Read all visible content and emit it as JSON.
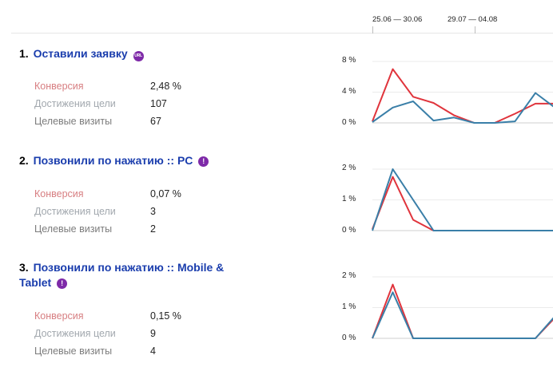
{
  "timeline": {
    "date_ranges": [
      "25.06 — 30.06",
      "29.07 — 04.08"
    ]
  },
  "colors": {
    "series_a": "#e0343c",
    "series_b": "#3a7fa8",
    "link": "#1a3dad",
    "badge": "#7e2aa8"
  },
  "goals": [
    {
      "number": "1.",
      "name": "Оставили заявку",
      "badge_icon": "url-icon",
      "badge_text": "URL",
      "metrics": [
        {
          "label": "Конверсия",
          "value": "2,48 %"
        },
        {
          "label": "Достижения цели",
          "value": "107"
        },
        {
          "label": "Целевые визиты",
          "value": "67"
        }
      ]
    },
    {
      "number": "2.",
      "name": "Позвонили по нажатию :: PC",
      "badge_icon": "exclamation-icon",
      "badge_text": "!",
      "metrics": [
        {
          "label": "Конверсия",
          "value": "0,07 %"
        },
        {
          "label": "Достижения цели",
          "value": "3"
        },
        {
          "label": "Целевые визиты",
          "value": "2"
        }
      ]
    },
    {
      "number": "3.",
      "name": "Позвонили по нажатию :: Mobile & Tablet",
      "badge_icon": "exclamation-icon",
      "badge_text": "!",
      "metrics": [
        {
          "label": "Конверсия",
          "value": "0,15 %"
        },
        {
          "label": "Достижения цели",
          "value": "9"
        },
        {
          "label": "Целевые визиты",
          "value": "4"
        }
      ]
    }
  ],
  "chart_data": [
    {
      "type": "line",
      "yticks": [
        "8 %",
        "4 %",
        "0 %"
      ],
      "ylim": [
        0,
        8
      ],
      "x": [
        0,
        1,
        2,
        3,
        4,
        5,
        6,
        7,
        8,
        9,
        10
      ],
      "series": [
        {
          "values": [
            0.2,
            7.0,
            3.4,
            2.6,
            1.0,
            0,
            0,
            1.2,
            2.5,
            2.5,
            2.5
          ]
        },
        {
          "values": [
            0.1,
            2.0,
            2.8,
            0.3,
            0.7,
            0,
            0,
            0.2,
            3.9,
            1.9,
            1.9
          ]
        }
      ]
    },
    {
      "type": "line",
      "yticks": [
        "2 %",
        "1 %",
        "0 %"
      ],
      "ylim": [
        0,
        2
      ],
      "x": [
        0,
        1,
        2,
        3,
        4,
        5,
        6,
        7,
        8,
        9,
        10
      ],
      "series": [
        {
          "values": [
            0.05,
            1.75,
            0.35,
            0,
            0,
            0,
            0,
            0,
            0,
            0,
            0
          ]
        },
        {
          "values": [
            0,
            2.0,
            1.0,
            0,
            0,
            0,
            0,
            0,
            0,
            0,
            0
          ]
        }
      ]
    },
    {
      "type": "line",
      "yticks": [
        "2 %",
        "1 %",
        "0 %"
      ],
      "ylim": [
        0,
        2
      ],
      "x": [
        0,
        1,
        2,
        3,
        4,
        5,
        6,
        7,
        8,
        9,
        10
      ],
      "series": [
        {
          "values": [
            0,
            1.75,
            0,
            0,
            0,
            0,
            0,
            0,
            0,
            0.7,
            0.1
          ]
        },
        {
          "values": [
            0,
            1.5,
            0,
            0,
            0,
            0,
            0,
            0,
            0,
            0.75,
            0
          ]
        }
      ]
    }
  ]
}
